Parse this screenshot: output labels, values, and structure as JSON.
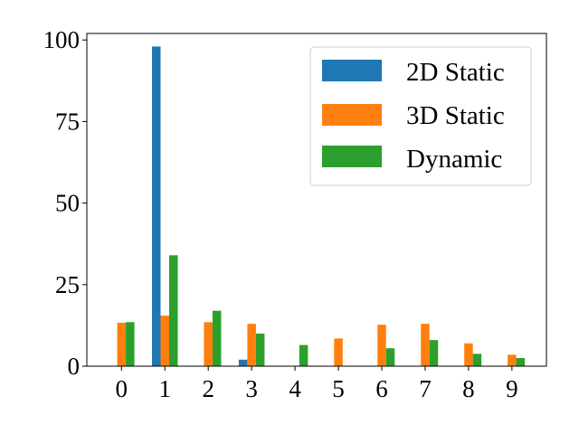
{
  "chart_data": {
    "type": "bar",
    "title": "",
    "xlabel": "",
    "ylabel": "",
    "categories": [
      "0",
      "1",
      "2",
      "3",
      "4",
      "5",
      "6",
      "7",
      "8",
      "9"
    ],
    "series": [
      {
        "name": "2D Static",
        "color": "#1f77b4",
        "values": [
          0,
          98,
          0,
          2,
          0,
          0,
          0,
          0,
          0,
          0
        ]
      },
      {
        "name": "3D Static",
        "color": "#ff7f0e",
        "values": [
          13.3,
          15.5,
          13.5,
          13,
          0,
          8.5,
          12.7,
          13,
          7,
          3.5
        ]
      },
      {
        "name": "Dynamic",
        "color": "#2ca02c",
        "values": [
          13.5,
          34,
          17,
          10,
          6.5,
          0,
          5.5,
          8,
          3.8,
          2.5
        ]
      }
    ],
    "ylim": [
      0,
      102
    ],
    "yticks": [
      "0",
      "25",
      "50",
      "75",
      "100"
    ],
    "grid": false,
    "legend_position": "top-right"
  }
}
